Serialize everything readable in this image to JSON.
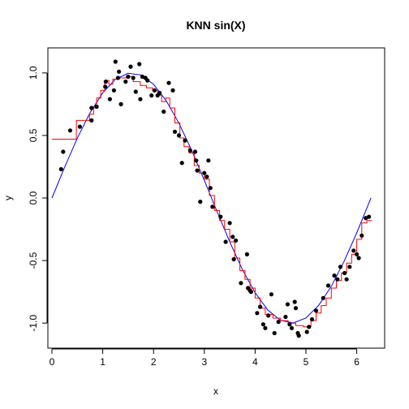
{
  "chart_data": {
    "type": "scatter",
    "title": "KNN sin(X)",
    "xlabel": "x",
    "ylabel": "y",
    "xlim": [
      -0.08,
      6.55
    ],
    "ylim": [
      -1.2,
      1.2
    ],
    "x_ticks": [
      0,
      1,
      2,
      3,
      4,
      5,
      6
    ],
    "y_ticks": [
      -1.0,
      -0.5,
      0.0,
      0.5,
      1.0
    ],
    "x_tick_labels": [
      "0",
      "1",
      "2",
      "3",
      "4",
      "5",
      "6"
    ],
    "y_tick_labels": [
      "-1.0",
      "-0.5",
      "0.0",
      "0.5",
      "1.0"
    ],
    "grid": false,
    "legend": "none",
    "points": {
      "color": "#000000",
      "x": [
        0.18,
        0.22,
        0.36,
        0.55,
        0.78,
        0.78,
        0.88,
        1.05,
        1.06,
        1.14,
        1.22,
        1.25,
        1.3,
        1.32,
        1.36,
        1.45,
        1.5,
        1.55,
        1.6,
        1.65,
        1.72,
        1.74,
        1.78,
        1.84,
        1.88,
        1.96,
        2.02,
        2.08,
        2.12,
        2.2,
        2.3,
        2.38,
        2.42,
        2.5,
        2.56,
        2.62,
        2.72,
        2.82,
        2.84,
        2.86,
        2.92,
        3.0,
        3.05,
        3.08,
        3.12,
        3.16,
        3.32,
        3.42,
        3.5,
        3.56,
        3.58,
        3.62,
        3.72,
        3.84,
        3.86,
        3.9,
        3.92,
        4.04,
        4.1,
        4.16,
        4.2,
        4.26,
        4.32,
        4.38,
        4.46,
        4.6,
        4.64,
        4.68,
        4.72,
        4.78,
        4.8,
        4.84,
        4.86,
        5.02,
        5.06,
        5.12,
        5.2,
        5.34,
        5.44,
        5.56,
        5.62,
        5.68,
        5.76,
        5.8,
        5.86,
        5.94,
        6.0,
        6.04,
        6.1,
        6.18,
        6.24
      ],
      "y": [
        0.23,
        0.37,
        0.54,
        0.57,
        0.62,
        0.72,
        0.73,
        0.89,
        0.93,
        0.79,
        0.86,
        1.09,
        0.96,
        1.01,
        0.75,
        0.93,
        0.97,
        1.05,
        0.96,
        0.85,
        1.07,
        0.79,
        0.97,
        0.96,
        0.94,
        0.82,
        0.86,
        0.82,
        0.84,
        0.69,
        0.92,
        0.86,
        0.53,
        0.5,
        0.28,
        0.46,
        0.38,
        0.37,
        0.3,
        0.22,
        -0.03,
        0.2,
        0.17,
        0.3,
        0.08,
        -0.07,
        -0.15,
        -0.35,
        -0.2,
        -0.31,
        -0.49,
        -0.34,
        -0.68,
        -0.45,
        -0.72,
        -0.74,
        -0.75,
        -0.92,
        -0.87,
        -1.01,
        -1.04,
        -0.94,
        -0.77,
        -1.08,
        -0.99,
        -0.95,
        -0.85,
        -1.01,
        -1.04,
        -0.83,
        -0.88,
        -1.08,
        -1.1,
        -1.07,
        -1.03,
        -0.97,
        -0.9,
        -0.8,
        -0.7,
        -0.62,
        -0.65,
        -0.55,
        -0.6,
        -0.65,
        -0.55,
        -0.42,
        -0.45,
        -0.48,
        -0.3,
        -0.16,
        -0.15
      ]
    },
    "series": [
      {
        "name": "",
        "color": "#0000ff",
        "x": [
          0,
          0.25,
          0.5,
          0.75,
          1,
          1.25,
          1.5,
          1.75,
          2,
          2.25,
          2.5,
          2.75,
          3,
          3.25,
          3.5,
          3.75,
          4,
          4.25,
          4.5,
          4.75,
          5,
          5.25,
          5.5,
          5.75,
          6,
          6.28
        ],
        "y": [
          0,
          0.247,
          0.479,
          0.682,
          0.841,
          0.949,
          0.997,
          0.984,
          0.909,
          0.778,
          0.598,
          0.382,
          0.141,
          -0.108,
          -0.351,
          -0.572,
          -0.757,
          -0.895,
          -0.978,
          -0.999,
          -0.959,
          -0.859,
          -0.706,
          -0.508,
          -0.279,
          0.0
        ]
      },
      {
        "name": "",
        "color": "#ff0000",
        "x": [
          0,
          0.48,
          0.48,
          0.56,
          0.56,
          0.74,
          0.74,
          0.82,
          0.82,
          0.88,
          0.88,
          0.96,
          0.96,
          1.04,
          1.04,
          1.12,
          1.12,
          1.2,
          1.2,
          1.32,
          1.32,
          1.46,
          1.46,
          1.6,
          1.6,
          1.74,
          1.74,
          1.86,
          1.86,
          1.98,
          1.98,
          2.08,
          2.08,
          2.16,
          2.16,
          2.24,
          2.24,
          2.32,
          2.32,
          2.42,
          2.42,
          2.52,
          2.52,
          2.6,
          2.6,
          2.7,
          2.7,
          2.8,
          2.8,
          2.9,
          2.9,
          3.0,
          3.0,
          3.1,
          3.1,
          3.2,
          3.2,
          3.3,
          3.3,
          3.4,
          3.4,
          3.5,
          3.5,
          3.6,
          3.6,
          3.7,
          3.7,
          3.8,
          3.8,
          3.9,
          3.9,
          4.0,
          4.0,
          4.1,
          4.1,
          4.2,
          4.2,
          4.35,
          4.35,
          4.5,
          4.5,
          4.65,
          4.65,
          4.8,
          4.8,
          4.95,
          4.95,
          5.1,
          5.1,
          5.2,
          5.2,
          5.3,
          5.3,
          5.4,
          5.4,
          5.5,
          5.5,
          5.6,
          5.6,
          5.7,
          5.7,
          5.8,
          5.8,
          5.9,
          5.9,
          6.0,
          6.0,
          6.1,
          6.1,
          6.2,
          6.2,
          6.3
        ],
        "y": [
          0.47,
          0.47,
          0.62,
          0.62,
          0.62,
          0.62,
          0.67,
          0.67,
          0.72,
          0.72,
          0.8,
          0.8,
          0.86,
          0.86,
          0.94,
          0.94,
          0.91,
          0.91,
          0.95,
          0.95,
          0.96,
          0.96,
          0.97,
          0.97,
          0.93,
          0.93,
          0.9,
          0.9,
          0.88,
          0.88,
          0.86,
          0.86,
          0.82,
          0.82,
          0.77,
          0.77,
          0.8,
          0.8,
          0.72,
          0.72,
          0.6,
          0.6,
          0.48,
          0.48,
          0.41,
          0.41,
          0.36,
          0.36,
          0.26,
          0.26,
          0.2,
          0.2,
          0.15,
          0.15,
          0.02,
          0.02,
          -0.1,
          -0.1,
          -0.18,
          -0.18,
          -0.25,
          -0.25,
          -0.35,
          -0.35,
          -0.48,
          -0.48,
          -0.58,
          -0.58,
          -0.65,
          -0.65,
          -0.72,
          -0.72,
          -0.8,
          -0.8,
          -0.88,
          -0.88,
          -0.93,
          -0.93,
          -0.96,
          -0.96,
          -0.98,
          -0.98,
          -1.0,
          -1.0,
          -1.02,
          -1.02,
          -1.03,
          -1.03,
          -0.98,
          -0.98,
          -0.92,
          -0.92,
          -0.86,
          -0.86,
          -0.8,
          -0.8,
          -0.72,
          -0.72,
          -0.66,
          -0.66,
          -0.6,
          -0.6,
          -0.52,
          -0.52,
          -0.45,
          -0.45,
          -0.33,
          -0.33,
          -0.2,
          -0.2,
          -0.18,
          -0.18
        ]
      }
    ]
  }
}
